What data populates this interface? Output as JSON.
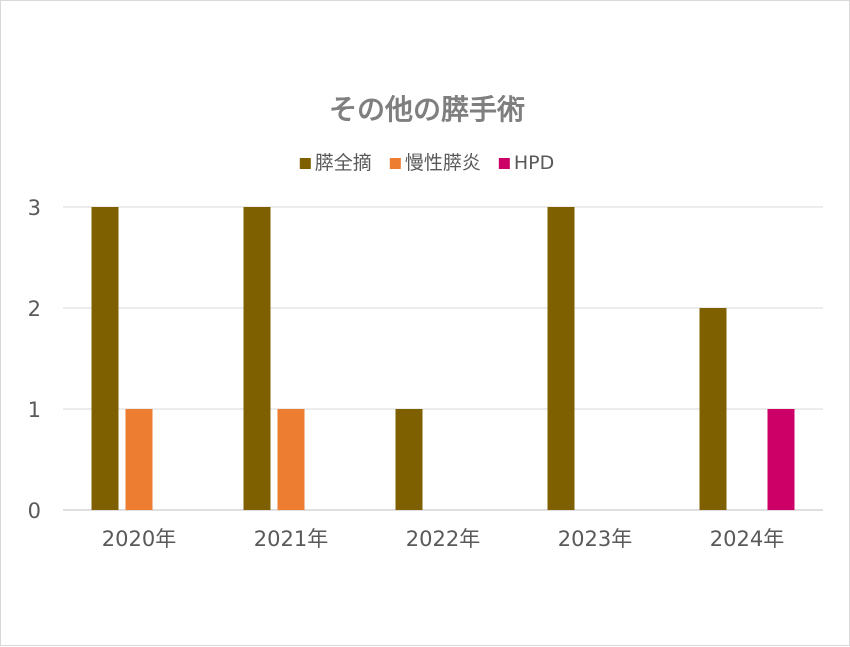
{
  "chart_data": {
    "type": "bar",
    "title": "その他の膵手術",
    "xlabel": "",
    "ylabel": "",
    "categories": [
      "2020年",
      "2021年",
      "2022年",
      "2023年",
      "2024年"
    ],
    "series": [
      {
        "name": "膵全摘",
        "color": "#7f6000",
        "values": [
          3,
          3,
          1,
          3,
          2
        ]
      },
      {
        "name": "慢性膵炎",
        "color": "#ed7d31",
        "values": [
          1,
          1,
          0,
          0,
          0
        ]
      },
      {
        "name": "HPD",
        "color": "#cc0066",
        "values": [
          0,
          0,
          0,
          0,
          1
        ]
      }
    ],
    "ylim": [
      0,
      3
    ],
    "yticks": [
      0,
      1,
      2,
      3
    ],
    "grid": true,
    "legend": "top"
  }
}
